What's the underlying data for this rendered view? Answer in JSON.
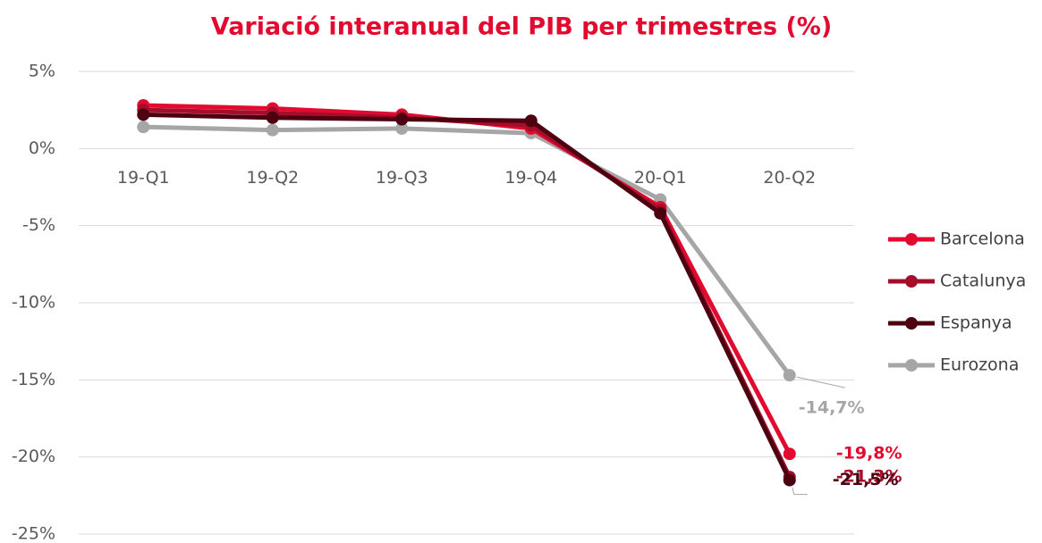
{
  "chart_data": {
    "type": "line",
    "title": "Variació interanual del PIB per trimestres (%)",
    "categories": [
      "19-Q1",
      "19-Q2",
      "19-Q3",
      "19-Q4",
      "20-Q1",
      "20-Q2"
    ],
    "series": [
      {
        "name": "Barcelona",
        "color": "#e30a2f",
        "values": [
          2.8,
          2.6,
          2.2,
          1.3,
          -3.8,
          -19.8
        ],
        "value_labels": [
          null,
          null,
          null,
          null,
          null,
          "-19,8%"
        ]
      },
      {
        "name": "Catalunya",
        "color": "#a50d2b",
        "values": [
          2.5,
          2.3,
          2.0,
          1.5,
          -4.0,
          -21.3
        ],
        "value_labels": [
          null,
          null,
          null,
          null,
          null,
          "-21,3%"
        ]
      },
      {
        "name": "Espanya",
        "color": "#4d0010",
        "values": [
          2.2,
          2.0,
          1.9,
          1.8,
          -4.2,
          -21.5
        ],
        "value_labels": [
          null,
          null,
          null,
          null,
          null,
          "-21,5%"
        ]
      },
      {
        "name": "Eurozona",
        "color": "#a6a6a6",
        "values": [
          1.4,
          1.2,
          1.3,
          1.0,
          -3.3,
          -14.7
        ],
        "value_labels": [
          null,
          null,
          null,
          null,
          null,
          "-14,7%"
        ]
      }
    ],
    "ylim": [
      -25,
      5
    ],
    "yticks": [
      {
        "value": 5,
        "label": "5%"
      },
      {
        "value": 0,
        "label": "0%"
      },
      {
        "value": -5,
        "label": "-5%"
      },
      {
        "value": -10,
        "label": "-10%"
      },
      {
        "value": -15,
        "label": "-15%"
      },
      {
        "value": -20,
        "label": "-20%"
      },
      {
        "value": -25,
        "label": "-25%"
      }
    ],
    "grid": true,
    "legend": "right"
  }
}
